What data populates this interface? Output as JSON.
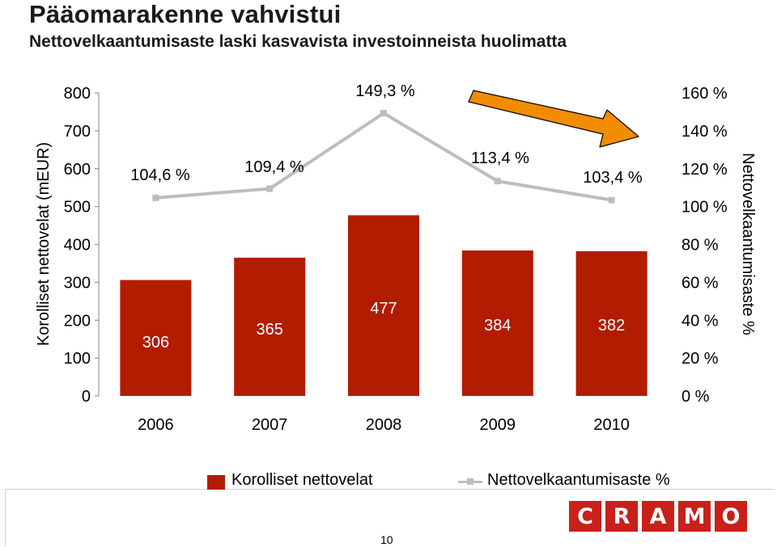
{
  "header": {
    "title": "Pääomarakenne vahvistui",
    "subtitle": "Nettovelkaantumisaste laski kasvavista investoinneista huolimatta"
  },
  "chart_data": {
    "type": "bar+line",
    "categories": [
      "2006",
      "2007",
      "2008",
      "2009",
      "2010"
    ],
    "series": [
      {
        "name": "Korolliset nettovelat",
        "type": "bar",
        "axis": "left",
        "values": [
          306,
          365,
          477,
          384,
          382
        ],
        "labels": [
          "306",
          "365",
          "477",
          "384",
          "382"
        ],
        "color": "#b21c00"
      },
      {
        "name": "Nettovelkaantumisaste %",
        "type": "line",
        "axis": "right",
        "values": [
          104.6,
          109.4,
          149.3,
          113.4,
          103.4
        ],
        "labels": [
          "104,6 %",
          "109,4 %",
          "149,3 %",
          "113,4 %",
          "103,4 %"
        ],
        "color": "#bdbdbd"
      }
    ],
    "ylabel": "Korolliset nettovelat (mEUR)",
    "y2label": "Nettovelkaantumisaste %",
    "ylim": [
      0,
      800
    ],
    "y2lim": [
      0,
      160
    ],
    "yticks": [
      "0",
      "100",
      "200",
      "300",
      "400",
      "500",
      "600",
      "700",
      "800"
    ],
    "y2ticks": [
      "0 %",
      "20 %",
      "40 %",
      "60 %",
      "80 %",
      "100 %",
      "120 %",
      "140 %",
      "160 %"
    ],
    "grid": false,
    "legend_position": "bottom",
    "annotation": {
      "type": "arrow",
      "color": "#f28c00",
      "meaning": "downward trend"
    }
  },
  "legend": {
    "bar_label": "Korolliset nettovelat",
    "line_label": "Nettovelkaantumisaste %"
  },
  "footer": {
    "page_number": "10",
    "logo_letters": [
      "C",
      "R",
      "A",
      "M",
      "O"
    ]
  }
}
